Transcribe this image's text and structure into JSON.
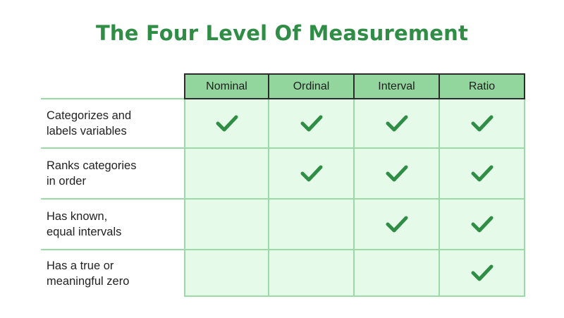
{
  "title": "The Four Level Of Measurement",
  "columns": [
    "Nominal",
    "Ordinal",
    "Interval",
    "Ratio"
  ],
  "rows": [
    {
      "label": "Categorizes and\nlabels variables",
      "checks": [
        true,
        true,
        true,
        true
      ]
    },
    {
      "label": "Ranks categories\nin order",
      "checks": [
        false,
        true,
        true,
        true
      ]
    },
    {
      "label": "Has known,\nequal intervals",
      "checks": [
        false,
        false,
        true,
        true
      ]
    },
    {
      "label": "Has a true or\nmeaningful zero",
      "checks": [
        false,
        false,
        false,
        true
      ]
    }
  ],
  "icon": "check-icon",
  "colors": {
    "accent": "#2f8d46",
    "header_bg": "#92d59d",
    "cell_bg": "#e6fae9",
    "grid_line": "#9bd9a6"
  }
}
